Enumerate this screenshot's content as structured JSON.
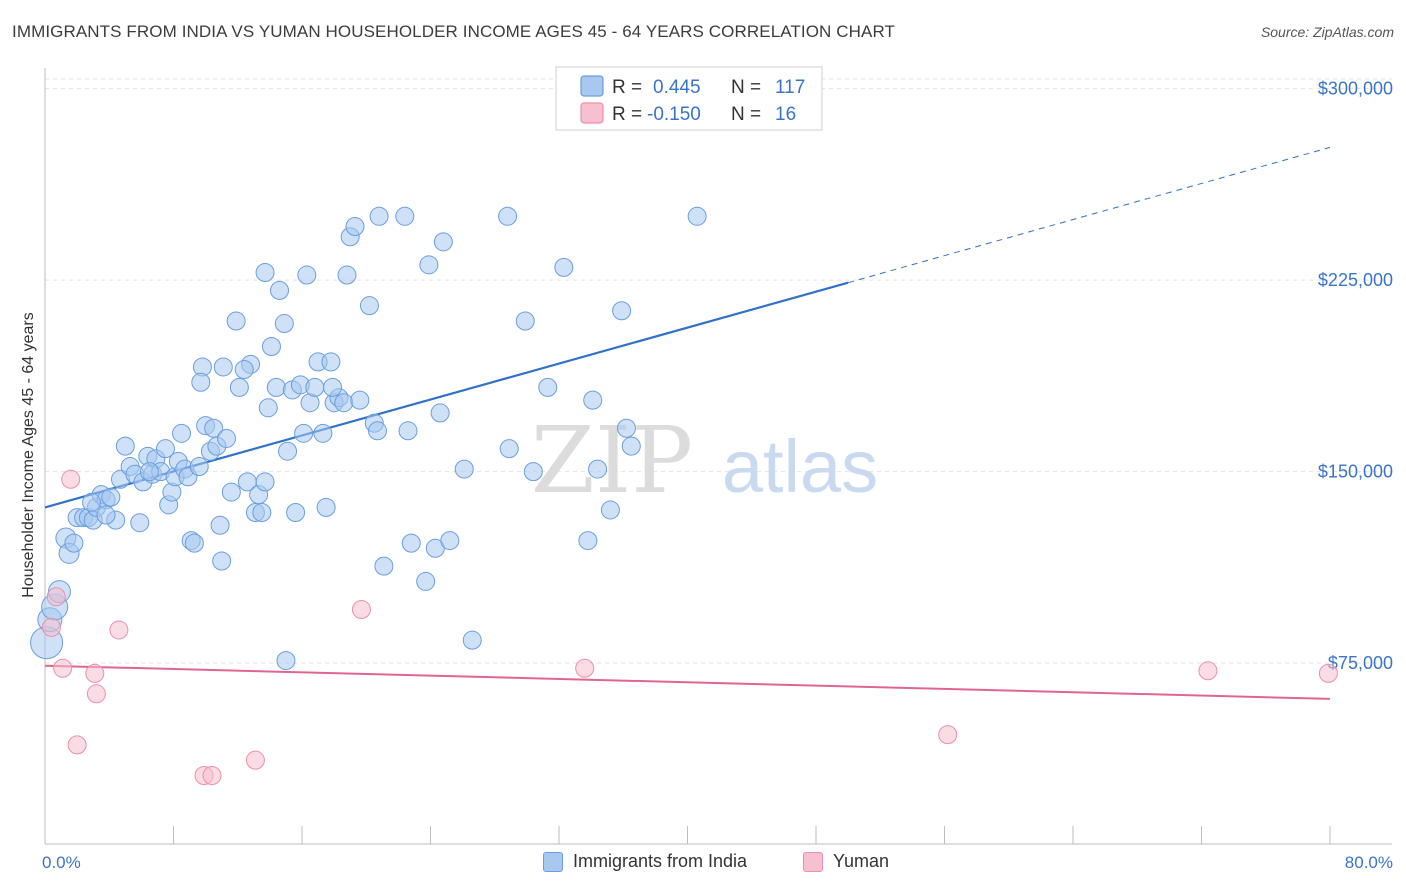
{
  "header": {
    "title": "IMMIGRANTS FROM INDIA VS YUMAN HOUSEHOLDER INCOME AGES 45 - 64 YEARS CORRELATION CHART",
    "source": "Source: ZipAtlas.com"
  },
  "watermark": {
    "zip": "ZIP",
    "atlas": "atlas"
  },
  "legend_top": [
    {
      "r_label": "R =",
      "r_value": "0.445",
      "n_label": "N =",
      "n_value": "117"
    },
    {
      "r_label": "R =",
      "r_value": "-0.150",
      "n_label": "N =",
      "n_value": "16"
    }
  ],
  "chart_data": {
    "type": "scatter",
    "ylabel": "Householder Income Ages 45 - 64 years",
    "xlim": [
      0,
      80
    ],
    "ylim": [
      12000,
      312000
    ],
    "x_tick_labels": [
      "0.0%",
      "80.0%"
    ],
    "y_ticks": [
      {
        "value": 75000,
        "label": "$75,000"
      },
      {
        "value": 150000,
        "label": "$150,000"
      },
      {
        "value": 225000,
        "label": "$225,000"
      },
      {
        "value": 300000,
        "label": "$300,000"
      }
    ],
    "grid": "horizontal dashed",
    "legend_position": "top-center",
    "colors": {
      "india_fill": "#a8c8ef",
      "india_stroke": "#6a9ee0",
      "india_line": "#3072c8",
      "yuman_fill": "#f6c0d0",
      "yuman_stroke": "#ec8fab",
      "yuman_line": "#e0668f",
      "tick_text": "#3a74c8"
    },
    "series": [
      {
        "name": "Immigrants from India",
        "r": 0.445,
        "n": 117,
        "trend": {
          "x0": 0,
          "y0": 136000,
          "x1": 50,
          "y1": 224000,
          "dash_x1": 80,
          "dash_y1": 277000
        },
        "points": [
          [
            0.1,
            83000,
            16
          ],
          [
            0.3,
            92000,
            12
          ],
          [
            0.6,
            97000,
            13
          ],
          [
            0.9,
            103000,
            11
          ],
          [
            1.3,
            124000,
            10
          ],
          [
            1.5,
            118000,
            10
          ],
          [
            1.8,
            122000,
            9
          ],
          [
            2.0,
            132000,
            9
          ],
          [
            2.4,
            132000,
            9
          ],
          [
            2.7,
            132000,
            9
          ],
          [
            3.0,
            131000,
            9
          ],
          [
            3.2,
            136000,
            9
          ],
          [
            3.5,
            141000,
            9
          ],
          [
            3.8,
            139000,
            9
          ],
          [
            4.1,
            140000,
            9
          ],
          [
            4.4,
            131000,
            9
          ],
          [
            4.7,
            147000,
            9
          ],
          [
            5.0,
            160000,
            9
          ],
          [
            5.3,
            152000,
            9
          ],
          [
            5.6,
            149000,
            9
          ],
          [
            5.9,
            130000,
            9
          ],
          [
            6.1,
            146000,
            9
          ],
          [
            6.4,
            156000,
            9
          ],
          [
            6.7,
            149000,
            9
          ],
          [
            6.9,
            155000,
            9
          ],
          [
            7.2,
            150000,
            9
          ],
          [
            7.5,
            159000,
            9
          ],
          [
            7.7,
            137000,
            9
          ],
          [
            7.9,
            142000,
            9
          ],
          [
            8.1,
            148000,
            9
          ],
          [
            8.3,
            154000,
            9
          ],
          [
            8.5,
            165000,
            9
          ],
          [
            8.7,
            151000,
            9
          ],
          [
            8.9,
            148000,
            9
          ],
          [
            9.1,
            123000,
            9
          ],
          [
            9.3,
            122000,
            9
          ],
          [
            9.6,
            152000,
            9
          ],
          [
            9.8,
            191000,
            9
          ],
          [
            10.0,
            168000,
            9
          ],
          [
            10.3,
            158000,
            9
          ],
          [
            10.5,
            167000,
            9
          ],
          [
            10.7,
            160000,
            9
          ],
          [
            10.9,
            129000,
            9
          ],
          [
            11.1,
            191000,
            9
          ],
          [
            11.3,
            163000,
            9
          ],
          [
            11.6,
            142000,
            9
          ],
          [
            11.9,
            209000,
            9
          ],
          [
            12.1,
            183000,
            9
          ],
          [
            12.6,
            146000,
            9
          ],
          [
            12.8,
            192000,
            9
          ],
          [
            13.1,
            134000,
            9
          ],
          [
            13.3,
            141000,
            9
          ],
          [
            13.5,
            134000,
            9
          ],
          [
            13.7,
            228000,
            9
          ],
          [
            13.9,
            175000,
            9
          ],
          [
            14.1,
            199000,
            9
          ],
          [
            14.4,
            183000,
            9
          ],
          [
            14.6,
            221000,
            9
          ],
          [
            14.9,
            208000,
            9
          ],
          [
            15.1,
            158000,
            9
          ],
          [
            15.4,
            182000,
            9
          ],
          [
            15.6,
            134000,
            9
          ],
          [
            15.9,
            184000,
            9
          ],
          [
            16.1,
            165000,
            9
          ],
          [
            16.3,
            227000,
            9
          ],
          [
            16.5,
            177000,
            9
          ],
          [
            16.8,
            183000,
            9
          ],
          [
            17.0,
            193000,
            9
          ],
          [
            17.3,
            165000,
            9
          ],
          [
            17.5,
            136000,
            9
          ],
          [
            17.8,
            193000,
            9
          ],
          [
            18.0,
            177000,
            9
          ],
          [
            18.3,
            179000,
            9
          ],
          [
            18.6,
            177000,
            9
          ],
          [
            19.0,
            242000,
            9
          ],
          [
            19.3,
            246000,
            9
          ],
          [
            19.6,
            178000,
            9
          ],
          [
            20.2,
            215000,
            9
          ],
          [
            20.5,
            169000,
            9
          ],
          [
            20.8,
            250000,
            9
          ],
          [
            21.1,
            113000,
            9
          ],
          [
            22.4,
            250000,
            9
          ],
          [
            22.6,
            166000,
            9
          ],
          [
            22.8,
            122000,
            9
          ],
          [
            23.7,
            107000,
            9
          ],
          [
            23.9,
            231000,
            9
          ],
          [
            24.3,
            120000,
            9
          ],
          [
            24.6,
            173000,
            9
          ],
          [
            24.8,
            240000,
            9
          ],
          [
            25.2,
            123000,
            9
          ],
          [
            26.1,
            151000,
            9
          ],
          [
            26.6,
            84000,
            9
          ],
          [
            28.8,
            250000,
            9
          ],
          [
            28.9,
            159000,
            9
          ],
          [
            29.9,
            209000,
            9
          ],
          [
            30.4,
            150000,
            9
          ],
          [
            31.3,
            183000,
            9
          ],
          [
            32.3,
            230000,
            9
          ],
          [
            33.8,
            123000,
            9
          ],
          [
            34.1,
            178000,
            9
          ],
          [
            34.4,
            151000,
            9
          ],
          [
            35.2,
            135000,
            9
          ],
          [
            35.9,
            213000,
            9
          ],
          [
            36.2,
            167000,
            9
          ],
          [
            36.5,
            160000,
            9
          ],
          [
            40.6,
            250000,
            9
          ],
          [
            11.0,
            115000,
            9
          ],
          [
            15.0,
            76000,
            9
          ],
          [
            2.9,
            138000,
            9
          ],
          [
            6.5,
            150000,
            9
          ],
          [
            9.7,
            185000,
            9
          ],
          [
            12.4,
            190000,
            9
          ],
          [
            17.9,
            183000,
            9
          ],
          [
            20.7,
            166000,
            9
          ],
          [
            13.7,
            146000,
            9
          ],
          [
            3.8,
            133000,
            9
          ],
          [
            18.8,
            227000,
            9
          ]
        ]
      },
      {
        "name": "Yuman",
        "r": -0.15,
        "n": 16,
        "trend": {
          "x0": 0,
          "y0": 74000,
          "x1": 80,
          "y1": 61000
        },
        "points": [
          [
            0.4,
            89000,
            9
          ],
          [
            0.7,
            101000,
            9
          ],
          [
            1.1,
            73000,
            9
          ],
          [
            1.6,
            147000,
            9
          ],
          [
            2.0,
            43000,
            9
          ],
          [
            3.1,
            71000,
            9
          ],
          [
            3.2,
            63000,
            9
          ],
          [
            4.6,
            88000,
            9
          ],
          [
            9.9,
            31000,
            9
          ],
          [
            10.4,
            31000,
            9
          ],
          [
            13.1,
            37000,
            9
          ],
          [
            19.7,
            96000,
            9
          ],
          [
            33.6,
            73000,
            9
          ],
          [
            56.2,
            47000,
            9
          ],
          [
            72.4,
            72000,
            9
          ],
          [
            79.9,
            71000,
            9
          ]
        ]
      }
    ]
  }
}
